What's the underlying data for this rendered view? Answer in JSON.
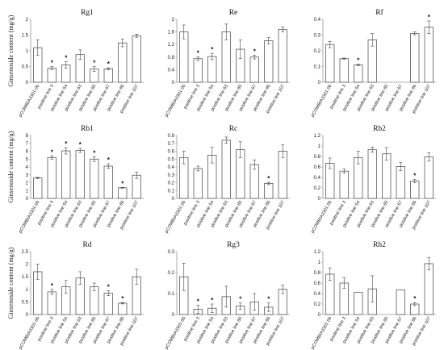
{
  "chart_data": [
    {
      "type": "bar",
      "title": "Rg1",
      "ylabel": "Ginsenoside content (mg/g)",
      "ylim": [
        0,
        2
      ],
      "yticks": [
        "0",
        "0.5",
        "1",
        "1.5",
        "2"
      ],
      "categories": [
        "pCOMBIA3301 00",
        "positive line 3",
        "positive line 54",
        "positive line 63",
        "positive line 65",
        "positive line 67",
        "positive line 86",
        "positive line 107"
      ],
      "values": [
        1.1,
        0.45,
        0.55,
        0.88,
        0.42,
        0.43,
        1.25,
        1.48
      ],
      "errors": [
        0.25,
        0.05,
        0.1,
        0.15,
        0.08,
        0.03,
        0.12,
        0.05
      ],
      "significant": [
        false,
        true,
        true,
        false,
        true,
        true,
        false,
        false
      ]
    },
    {
      "type": "bar",
      "title": "Re",
      "ylabel": "",
      "ylim": [
        0,
        2
      ],
      "yticks": [
        "0",
        "0.4",
        "0.8",
        "1.2",
        "1.6",
        "2"
      ],
      "categories": [
        "pCOMBIA3301 00",
        "positive line 3",
        "positive line 54",
        "positive line 63",
        "positive line 65",
        "positive line 67",
        "positive line 86",
        "positive line 107"
      ],
      "values": [
        1.6,
        0.75,
        0.82,
        1.6,
        1.05,
        0.8,
        1.32,
        1.68
      ],
      "errors": [
        0.22,
        0.06,
        0.1,
        0.25,
        0.3,
        0.06,
        0.1,
        0.08
      ],
      "significant": [
        false,
        true,
        true,
        false,
        false,
        true,
        false,
        false
      ]
    },
    {
      "type": "bar",
      "title": "Rf",
      "ylabel": "",
      "ylim": [
        0,
        0.4
      ],
      "yticks": [
        "0",
        "0.1",
        "0.2",
        "0.3",
        "0.4"
      ],
      "categories": [
        "pCOMBIA3301 00",
        "positive line 3",
        "positive line 54",
        "positive line 63",
        "positive line 65",
        "positive line 67",
        "positive line 86",
        "positive line 107"
      ],
      "values": [
        0.24,
        0.15,
        0.11,
        0.27,
        0,
        0,
        0.31,
        0.35
      ],
      "errors": [
        0.02,
        0.004,
        0.005,
        0.04,
        0,
        0,
        0.01,
        0.04
      ],
      "significant": [
        false,
        false,
        true,
        false,
        false,
        false,
        false,
        true
      ]
    },
    {
      "type": "bar",
      "title": "Rb1",
      "ylabel": "Ginsenoside content (mg/g)",
      "ylim": [
        0,
        8
      ],
      "yticks": [
        "0",
        "1",
        "2",
        "3",
        "4",
        "5",
        "6",
        "7",
        "8"
      ],
      "categories": [
        "pCOMBIA3301 00",
        "positive line 3",
        "positive line 54",
        "positive line 63",
        "positive line 65",
        "positive line 67",
        "positive line 86",
        "positive line 107"
      ],
      "values": [
        2.6,
        5.2,
        6.05,
        6.1,
        5.0,
        4.1,
        1.35,
        2.95
      ],
      "errors": [
        0.08,
        0.2,
        0.4,
        0.25,
        0.3,
        0.3,
        0.05,
        0.4
      ],
      "significant": [
        false,
        true,
        true,
        true,
        true,
        true,
        true,
        false
      ]
    },
    {
      "type": "bar",
      "title": "Rc",
      "ylabel": "",
      "ylim": [
        0,
        0.8
      ],
      "yticks": [
        "0",
        "0.1",
        "0.2",
        "0.3",
        "0.4",
        "0.5",
        "0.6",
        "0.7",
        "0.8"
      ],
      "categories": [
        "pCOMBIA3301 00",
        "positive line 3",
        "positive line 54",
        "positive line 63",
        "positive line 65",
        "positive line 67",
        "positive line 86",
        "positive line 107"
      ],
      "values": [
        0.52,
        0.38,
        0.55,
        0.74,
        0.62,
        0.43,
        0.19,
        0.6
      ],
      "errors": [
        0.08,
        0.03,
        0.1,
        0.04,
        0.1,
        0.06,
        0.015,
        0.08
      ],
      "significant": [
        false,
        false,
        false,
        false,
        false,
        false,
        true,
        false
      ]
    },
    {
      "type": "bar",
      "title": "Rb2",
      "ylabel": "",
      "ylim": [
        0,
        1.2
      ],
      "yticks": [
        "0",
        "0.2",
        "0.4",
        "0.6",
        "0.8",
        "1",
        "1.2"
      ],
      "categories": [
        "pCOMBIA3301 00",
        "positive line 3",
        "positive line 54",
        "positive line 63",
        "positive line 65",
        "positive line 67",
        "positive line 86",
        "positive line 107"
      ],
      "values": [
        0.67,
        0.52,
        0.78,
        0.93,
        0.85,
        0.61,
        0.33,
        0.79
      ],
      "errors": [
        0.1,
        0.04,
        0.12,
        0.05,
        0.12,
        0.08,
        0.03,
        0.08
      ],
      "significant": [
        false,
        false,
        false,
        false,
        false,
        false,
        true,
        false
      ]
    },
    {
      "type": "bar",
      "title": "Rd",
      "ylabel": "Ginsenoside content (mg/g)",
      "ylim": [
        0,
        2.5
      ],
      "yticks": [
        "0",
        "0.5",
        "1",
        "1.5",
        "2",
        "2.5"
      ],
      "categories": [
        "pCOMBIA3301 00",
        "positive line 3",
        "positive line 54",
        "positive line 63",
        "positive line 65",
        "positive line 67",
        "positive line 86",
        "positive line 107"
      ],
      "values": [
        1.7,
        0.9,
        1.1,
        1.45,
        1.1,
        0.85,
        0.45,
        1.5
      ],
      "errors": [
        0.3,
        0.1,
        0.25,
        0.25,
        0.15,
        0.1,
        0.03,
        0.3
      ],
      "significant": [
        false,
        true,
        false,
        false,
        false,
        true,
        true,
        false
      ]
    },
    {
      "type": "bar",
      "title": "Rg3",
      "ylabel": "",
      "ylim": [
        0,
        0.3
      ],
      "yticks": [
        "0",
        "0.1",
        "0.2",
        "0.3"
      ],
      "categories": [
        "pCOMBIA3301 00",
        "positive line 3",
        "positive line 54",
        "positive line 63",
        "positive line 65",
        "positive line 67",
        "positive line 86",
        "positive line 107"
      ],
      "values": [
        0.18,
        0.025,
        0.03,
        0.085,
        0.04,
        0.06,
        0.035,
        0.12
      ],
      "errors": [
        0.065,
        0.02,
        0.02,
        0.05,
        0.015,
        0.04,
        0.02,
        0.02
      ],
      "significant": [
        false,
        true,
        true,
        false,
        true,
        false,
        true,
        false
      ]
    },
    {
      "type": "bar",
      "title": "Rh2",
      "ylabel": "",
      "ylim": [
        0,
        1.2
      ],
      "yticks": [
        "0",
        "0.2",
        "0.4",
        "0.6",
        "0.8",
        "1",
        "1.2"
      ],
      "categories": [
        "pCOMBIA3301 00",
        "positive line 3",
        "positive line 54",
        "positive line 63",
        "positive line 65",
        "positive line 67",
        "positive line 86",
        "positive line 107"
      ],
      "values": [
        0.77,
        0.6,
        0.42,
        0.49,
        0,
        0.47,
        0.2,
        0.97
      ],
      "errors": [
        0.12,
        0.1,
        0,
        0.25,
        0,
        0,
        0.03,
        0.12
      ],
      "significant": [
        false,
        false,
        false,
        false,
        false,
        false,
        true,
        false
      ]
    }
  ]
}
